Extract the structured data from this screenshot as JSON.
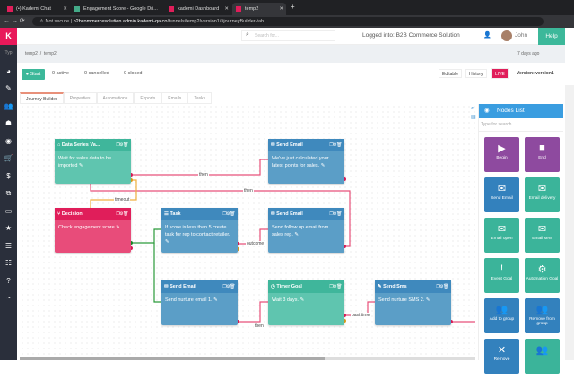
{
  "browser": {
    "tabs": [
      {
        "title": "(•) Kademi Chat"
      },
      {
        "title": "Engagement Score - Google Dri..."
      },
      {
        "title": "kademi Dashboard"
      },
      {
        "title": "temp2",
        "active": true
      }
    ],
    "url_prefix": "Not secure",
    "url_host": "b2bcommercesolution.admin.kademi-qa.co",
    "url_path": "/funnels/temp2/version1/#journeyBuilder-tab"
  },
  "header": {
    "search_placeholder": "Search for...",
    "logged_into": "Logged into: B2B Commerce Solution",
    "user": "John",
    "help": "Help"
  },
  "sidebar": {
    "logo": "K",
    "collapse_label": "Typ"
  },
  "breadcrumb": [
    "temp2",
    "/",
    "temp2"
  ],
  "time_filter": "7 days ago",
  "actions": {
    "start": "Start",
    "active": "0 active",
    "cancelled": "0 cancelled",
    "closed": "0 closed",
    "editable": "Editable",
    "history": "History",
    "live": "LIVE",
    "version": "Version: version1"
  },
  "tabs": [
    "Journey Builder",
    "Properties",
    "Automations",
    "Exports",
    "Emails",
    "Tasks"
  ],
  "nodes": [
    {
      "title": "Data Series Va...",
      "body": "Wait for sales data to be imported"
    },
    {
      "title": "Send Email",
      "body": "We've just calculated your latest points for sales."
    },
    {
      "title": "Decision",
      "body": "Check engagement score"
    },
    {
      "title": "Task",
      "body": "If score is less than 5 create task for rep to contact retailer."
    },
    {
      "title": "Send Email",
      "body": "Send follow up email from sales rep."
    },
    {
      "title": "Send Email",
      "body": "Send nurture email 1."
    },
    {
      "title": "Timer Goal",
      "body": "Wait 3 days."
    },
    {
      "title": "Send Sms",
      "body": "Send nurture SMS 2."
    }
  ],
  "wire_labels": {
    "then1": "then",
    "then2": "then",
    "timeout": "timeout",
    "outcome": "outcome",
    "then3": "then",
    "past_time": "past time"
  },
  "nodes_panel": {
    "title": "Nodes List",
    "search_placeholder": "Type for search",
    "items": [
      {
        "label": "Begin",
        "icon": "play-circle"
      },
      {
        "label": "End",
        "icon": "stop-circle"
      },
      {
        "label": "Send Email",
        "icon": "envelope"
      },
      {
        "label": "Email delivery",
        "icon": "envelope-check"
      },
      {
        "label": "Email open",
        "icon": "envelope-open"
      },
      {
        "label": "Email sent",
        "icon": "envelope"
      },
      {
        "label": "Event Goal",
        "icon": "exclamation"
      },
      {
        "label": "Automation Goal",
        "icon": "gear"
      },
      {
        "label": "Add to group",
        "icon": "users"
      },
      {
        "label": "Remove from group",
        "icon": "users"
      },
      {
        "label": "Remove",
        "icon": "times"
      },
      {
        "label": "",
        "icon": "users"
      }
    ]
  },
  "colors": {
    "brand": "#e01e5a",
    "green": "#3cb89a",
    "blue": "#3f89bd",
    "purple": "#8e4a9f"
  }
}
